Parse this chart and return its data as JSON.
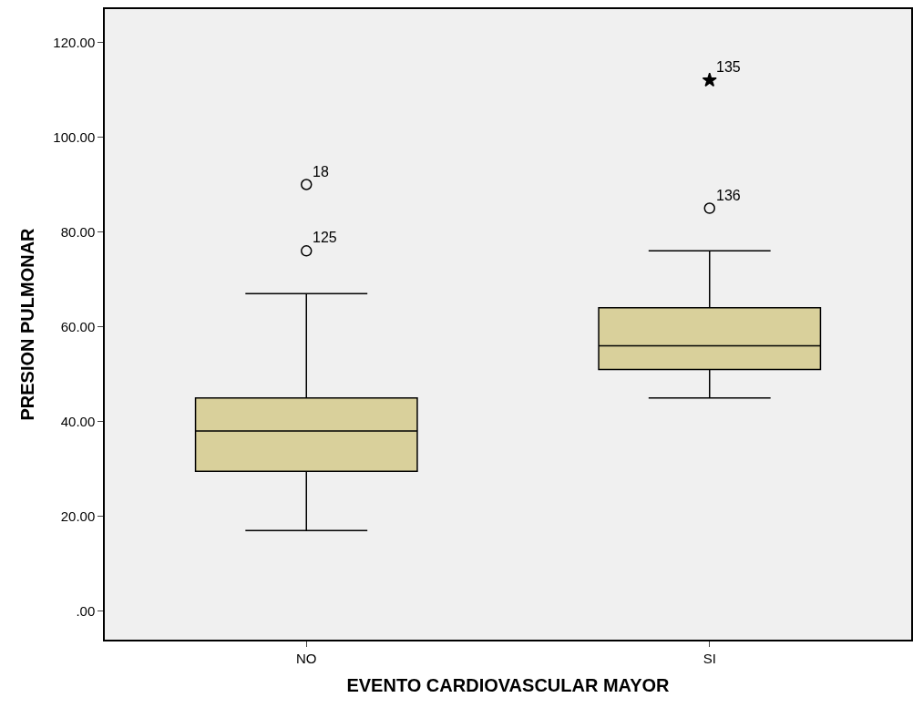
{
  "chart_data": {
    "type": "box",
    "xlabel": "EVENTO CARDIOVASCULAR MAYOR",
    "ylabel": "PRESION PULMONAR",
    "categories": [
      "NO",
      "SI"
    ],
    "boxes": [
      {
        "low": 17,
        "q1": 29.5,
        "median": 38,
        "q3": 45,
        "high": 67
      },
      {
        "low": 45,
        "q1": 51,
        "median": 56,
        "q3": 64,
        "high": 76
      }
    ],
    "color": "#d9d09b",
    "series": [
      {
        "type": "scatter",
        "marker": "circle",
        "color": "#000000",
        "x": [
          "NO",
          "NO",
          "SI"
        ],
        "values": [
          90,
          76,
          85
        ]
      },
      {
        "type": "scatter",
        "marker": "star",
        "color": "#000000",
        "x": [
          "SI"
        ],
        "values": [
          112
        ]
      }
    ],
    "annotations": [
      {
        "text": "18",
        "x": "NO",
        "y": 90
      },
      {
        "text": "125",
        "x": "NO",
        "y": 76
      },
      {
        "text": "136",
        "x": "SI",
        "y": 85
      },
      {
        "text": "135",
        "x": "SI",
        "y": 112
      }
    ],
    "ylim": [
      -6,
      127
    ],
    "yticks": [
      {
        "value": 0,
        "label": ".00"
      },
      {
        "value": 20,
        "label": "20.00"
      },
      {
        "value": 40,
        "label": "40.00"
      },
      {
        "value": 60,
        "label": "60.00"
      },
      {
        "value": 80,
        "label": "80.00"
      },
      {
        "value": 100,
        "label": "100.00"
      },
      {
        "value": 120,
        "label": "120.00"
      }
    ],
    "grid": false
  }
}
